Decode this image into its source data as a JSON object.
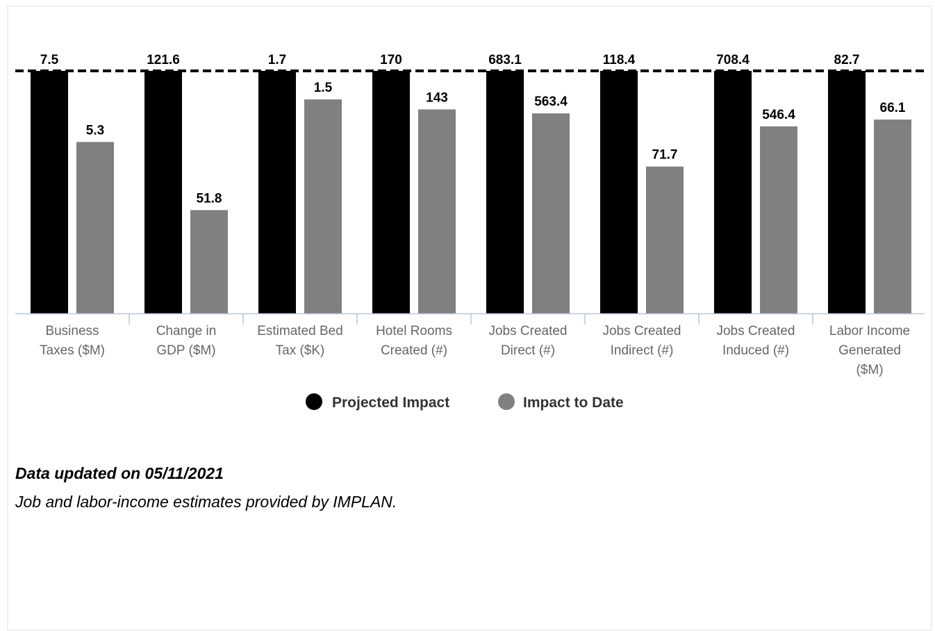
{
  "chart_data": {
    "type": "bar",
    "categories": [
      [
        "Business",
        "Taxes ($M)"
      ],
      [
        "Change in",
        "GDP ($M)"
      ],
      [
        "Estimated Bed",
        "Tax ($K)"
      ],
      [
        "Hotel Rooms",
        "Created (#)"
      ],
      [
        "Jobs Created",
        "Direct (#)"
      ],
      [
        "Jobs Created",
        "Indirect (#)"
      ],
      [
        "Jobs Created",
        "Induced (#)"
      ],
      [
        "Labor Income",
        "Generated",
        "($M)"
      ]
    ],
    "series": [
      {
        "name": "Projected Impact",
        "color": "#000000",
        "values": [
          7.5,
          121.6,
          1.7,
          170,
          683.1,
          118.4,
          708.4,
          82.7
        ],
        "labels": [
          "7.5",
          "121.6",
          "1.7",
          "170",
          "683.1",
          "118.4",
          "708.4",
          "82.7"
        ]
      },
      {
        "name": "Impact to Date",
        "color": "#808080",
        "values": [
          5.3,
          51.8,
          1.5,
          143,
          563.4,
          71.7,
          546.4,
          66.1
        ],
        "labels": [
          "5.3",
          "51.8",
          "1.5",
          "143",
          "563.4",
          "71.7",
          "546.4",
          "66.1"
        ],
        "relative_to_projected": [
          0.7067,
          0.426,
          0.8824,
          0.8412,
          0.8248,
          0.6056,
          0.7713,
          0.7993
        ]
      }
    ],
    "normalization": "each category scaled so Projected Impact = 100%",
    "target_line": "dashed, at projected level",
    "legend_position": "bottom-center",
    "grid": false
  },
  "notes": {
    "updated": "Data updated on 05/11/2021",
    "source": "Job and labor-income estimates provided by IMPLAN."
  }
}
